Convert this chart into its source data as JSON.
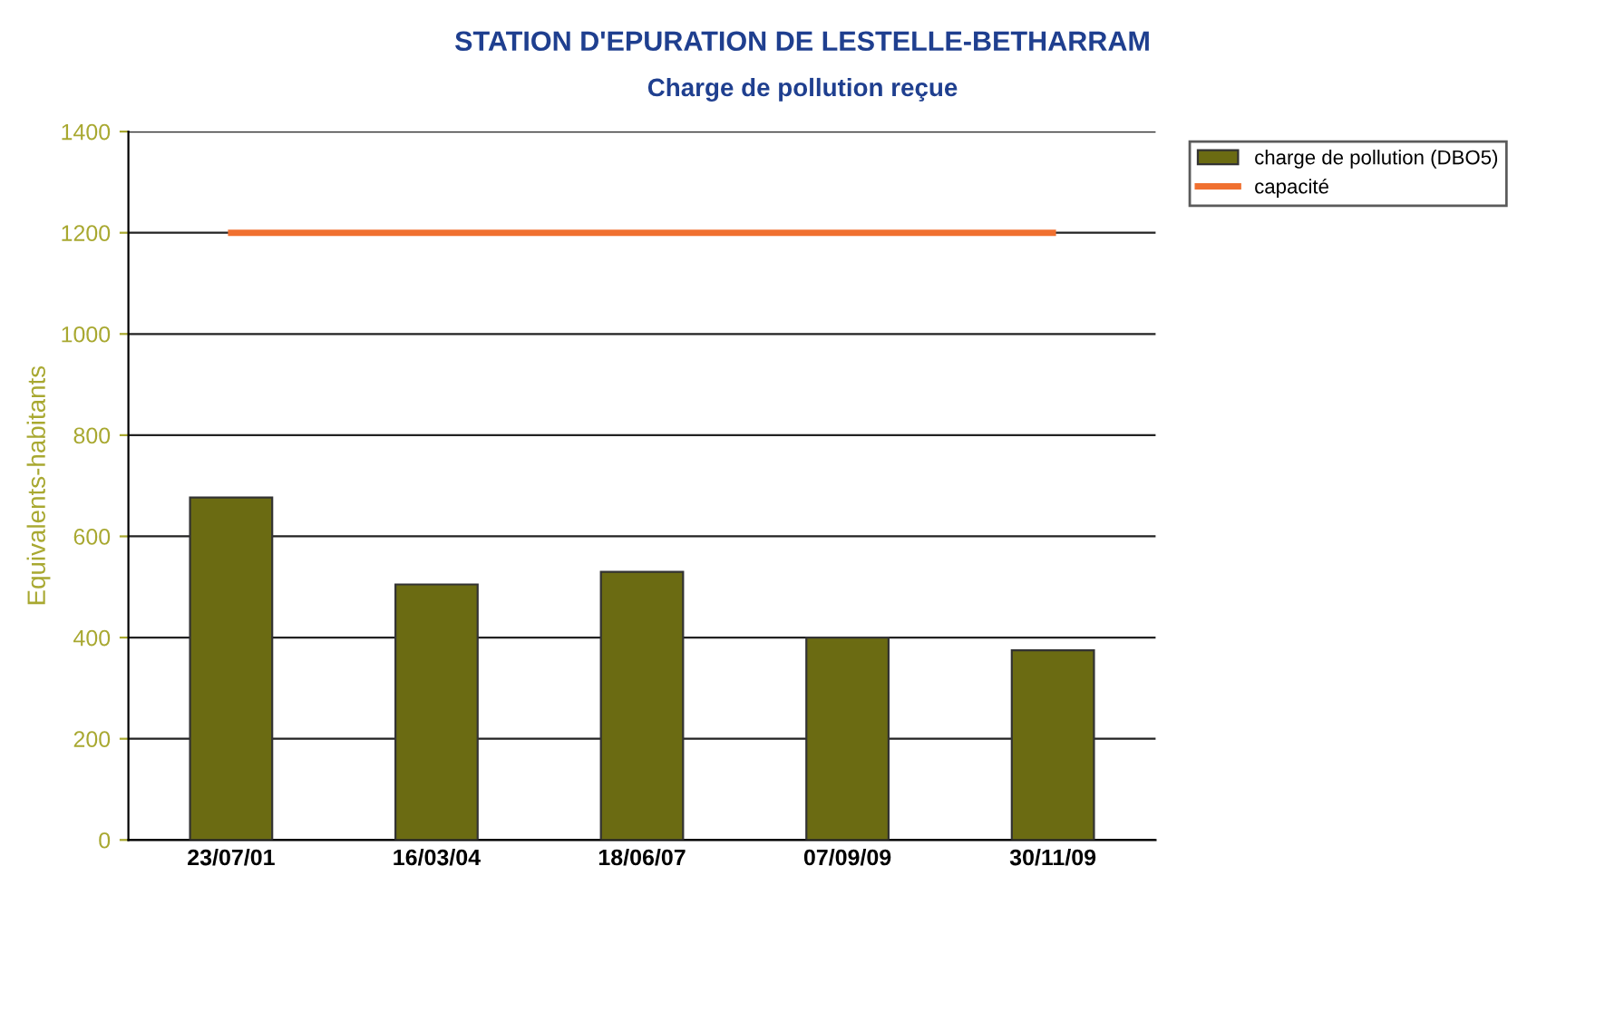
{
  "chart_data": {
    "type": "bar",
    "title": "STATION D'EPURATION DE LESTELLE-BETHARRAM",
    "subtitle": "Charge de pollution reçue",
    "ylabel": "Equivalents-habitants",
    "categories": [
      "23/07/01",
      "16/03/04",
      "18/06/07",
      "07/09/09",
      "30/11/09"
    ],
    "series": [
      {
        "name": "charge de pollution (DBO5)",
        "color": "#6b6b12",
        "values": [
          677,
          505,
          530,
          400,
          375
        ]
      },
      {
        "name": "capacité",
        "type": "line",
        "color": "#f07030",
        "values": [
          1200,
          1200,
          1200,
          1200,
          1200
        ]
      }
    ],
    "ylim": [
      0,
      1400
    ],
    "yticks": [
      0,
      200,
      400,
      600,
      800,
      1000,
      1200,
      1400
    ],
    "grid": "y",
    "legend": "top right"
  }
}
